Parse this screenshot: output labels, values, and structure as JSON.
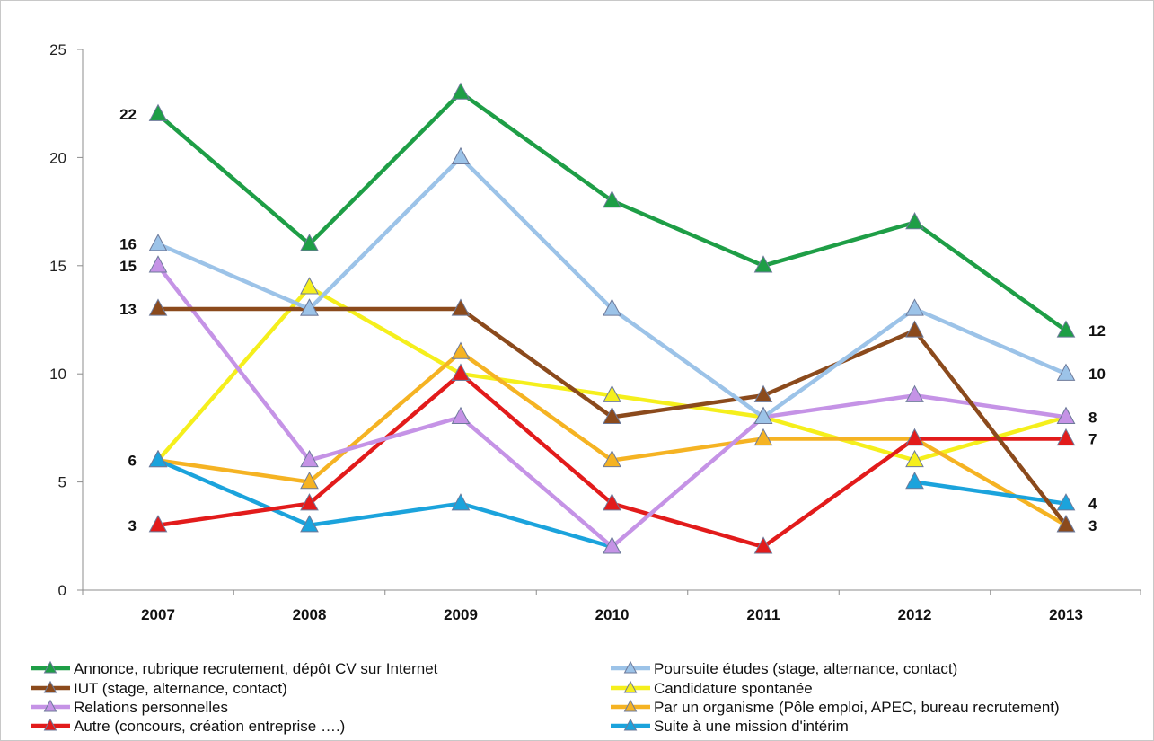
{
  "chart_data": {
    "type": "line",
    "title": "",
    "xlabel": "",
    "ylabel": "",
    "categories": [
      "2007",
      "2008",
      "2009",
      "2010",
      "2011",
      "2012",
      "2013"
    ],
    "ylim": [
      0,
      25
    ],
    "yticks": [
      "0",
      "5",
      "10",
      "15",
      "20",
      "25"
    ],
    "grid": false,
    "legend_position": "bottom",
    "series": [
      {
        "name": "Annonce, rubrique recrutement, dépôt CV sur Internet",
        "color": "#1e9e46",
        "values": [
          22,
          16,
          23,
          18,
          15,
          17,
          12
        ]
      },
      {
        "name": "Poursuite études (stage, alternance, contact)",
        "color": "#9cc3e8",
        "values": [
          16,
          13,
          20,
          13,
          8,
          13,
          10
        ]
      },
      {
        "name": "IUT (stage, alternance, contact)",
        "color": "#8b4a1c",
        "values": [
          13,
          13,
          13,
          8,
          9,
          12,
          3
        ]
      },
      {
        "name": "Candidature spontanée",
        "color": "#f5ef1c",
        "values": [
          6,
          14,
          10,
          9,
          8,
          6,
          8
        ]
      },
      {
        "name": "Relations personnelles",
        "color": "#c593e6",
        "values": [
          15,
          6,
          8,
          2,
          8,
          9,
          8
        ]
      },
      {
        "name": "Par un organisme (Pôle emploi, APEC, bureau recrutement)",
        "color": "#f5b323",
        "values": [
          6,
          5,
          11,
          6,
          7,
          7,
          3
        ]
      },
      {
        "name": "Autre (concours, création entreprise ….)",
        "color": "#e21b1b",
        "values": [
          3,
          4,
          10,
          4,
          2,
          7,
          7
        ]
      },
      {
        "name": "Suite à une mission d'intérim",
        "color": "#1ba3dc",
        "values": [
          6,
          3,
          4,
          2,
          null,
          5,
          4
        ]
      }
    ],
    "data_labels_left": [
      "22",
      "16",
      "15",
      "13",
      "6",
      "3"
    ],
    "data_labels_left_values": [
      22,
      16,
      15,
      13,
      6,
      3
    ],
    "data_labels_right": [
      "12",
      "10",
      "8",
      "7",
      "4",
      "3"
    ],
    "data_labels_right_values": [
      12,
      10,
      8,
      7,
      4,
      3
    ]
  }
}
